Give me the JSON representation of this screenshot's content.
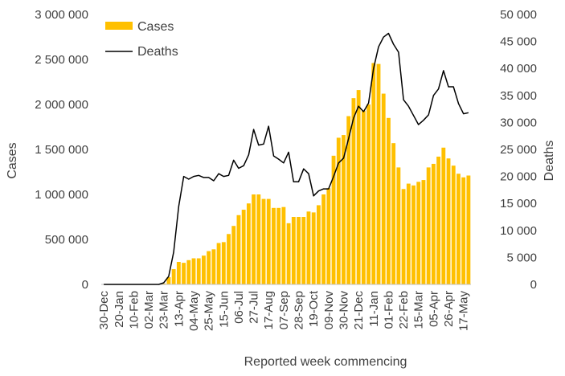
{
  "chart_data": {
    "type": "bar",
    "xlabel": "Reported week commencing",
    "ylabel": "Cases",
    "y2label": "Deaths",
    "ylim": [
      0,
      3000000
    ],
    "y2lim": [
      0,
      50000
    ],
    "y_ticks": [
      "0",
      "500 000",
      "1 000 000",
      "1 500 000",
      "2 000 000",
      "2 500 000",
      "3 000 000"
    ],
    "y2_ticks": [
      "0",
      "5 000",
      "10 000",
      "15 000",
      "20 000",
      "25 000",
      "30 000",
      "35 000",
      "40 000",
      "45 000",
      "50 000"
    ],
    "tick_labels": [
      "30-Dec",
      "20-Jan",
      "10-Feb",
      "02-Mar",
      "23-Mar",
      "13-Apr",
      "04-May",
      "25-May",
      "15-Jun",
      "06-Jul",
      "27-Jul",
      "17-Aug",
      "07-Sep",
      "28-Sep",
      "19-Oct",
      "09-Nov",
      "30-Nov",
      "21-Dec",
      "11-Jan",
      "01-Feb",
      "22-Feb",
      "15-Mar",
      "05-Apr",
      "26-Apr",
      "17-May"
    ],
    "legend": [
      "Cases",
      "Deaths"
    ],
    "legend_position": "top-left",
    "grid": false,
    "colors": {
      "cases": "#FFC000",
      "deaths": "#000000",
      "axis": "#bfbfbf",
      "text": "#404040"
    },
    "series": [
      {
        "name": "Cases",
        "type": "bar",
        "axis": "left",
        "values": [
          0,
          0,
          0,
          0,
          0,
          0,
          0,
          0,
          0,
          0,
          0,
          0,
          10000,
          80000,
          170000,
          250000,
          240000,
          270000,
          290000,
          290000,
          320000,
          370000,
          390000,
          460000,
          470000,
          560000,
          650000,
          770000,
          830000,
          900000,
          1000000,
          1000000,
          950000,
          950000,
          850000,
          850000,
          860000,
          680000,
          750000,
          750000,
          750000,
          810000,
          800000,
          880000,
          1000000,
          1070000,
          1430000,
          1630000,
          1660000,
          1870000,
          2070000,
          2160000,
          1930000,
          2000000,
          2460000,
          2450000,
          2120000,
          1850000,
          1570000,
          1300000,
          1060000,
          1120000,
          1100000,
          1140000,
          1160000,
          1300000,
          1340000,
          1420000,
          1520000,
          1400000,
          1320000,
          1230000,
          1190000,
          1210000
        ]
      },
      {
        "name": "Deaths",
        "type": "line",
        "axis": "right",
        "values": [
          0,
          0,
          0,
          0,
          0,
          0,
          0,
          0,
          0,
          0,
          0,
          0,
          300,
          1500,
          6000,
          14500,
          20000,
          19500,
          20000,
          20200,
          19800,
          19800,
          19200,
          20500,
          20000,
          20200,
          23000,
          21500,
          22000,
          24000,
          28700,
          25800,
          26000,
          29300,
          23800,
          23200,
          22500,
          24500,
          19000,
          19000,
          21400,
          20500,
          16400,
          17300,
          17700,
          17700,
          20000,
          22500,
          23400,
          27000,
          30800,
          33000,
          32000,
          33600,
          40000,
          44000,
          45800,
          46500,
          44500,
          43000,
          34200,
          33000,
          31300,
          29600,
          30400,
          31400,
          35000,
          36200,
          39600,
          36600,
          36600,
          33500,
          31600,
          31800
        ]
      }
    ]
  }
}
